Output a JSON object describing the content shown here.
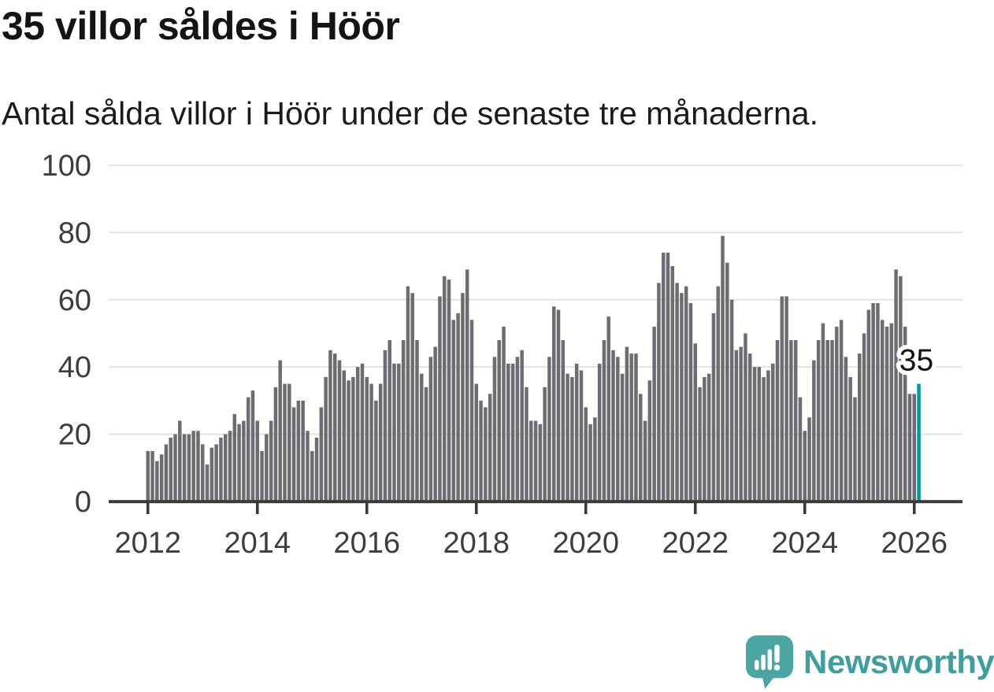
{
  "header": {
    "title": "35 villor såldes i Höör",
    "subtitle": "Antal sålda villor i Höör under de senaste tre månaderna."
  },
  "chart_data": {
    "type": "bar",
    "title": "35 villor såldes i Höör",
    "subtitle": "Antal sålda villor i Höör under de senaste tre månaderna.",
    "x_start_month": "2012-01",
    "x_end_month": "2026-02",
    "frequency": "monthly",
    "values": [
      15,
      15,
      12,
      14,
      17,
      19,
      20,
      24,
      20,
      20,
      21,
      21,
      17,
      11,
      16,
      17,
      19,
      20,
      21,
      26,
      23,
      24,
      31,
      33,
      24,
      15,
      20,
      24,
      34,
      42,
      35,
      35,
      28,
      30,
      30,
      21,
      15,
      19,
      28,
      37,
      45,
      44,
      42,
      39,
      36,
      37,
      40,
      41,
      37,
      35,
      30,
      35,
      45,
      48,
      41,
      41,
      48,
      64,
      62,
      48,
      38,
      34,
      43,
      46,
      61,
      67,
      66,
      54,
      56,
      62,
      69,
      54,
      35,
      30,
      28,
      32,
      43,
      48,
      52,
      41,
      41,
      43,
      45,
      34,
      24,
      24,
      23,
      34,
      43,
      58,
      57,
      48,
      38,
      37,
      41,
      39,
      28,
      23,
      25,
      41,
      48,
      55,
      45,
      43,
      38,
      46,
      44,
      44,
      32,
      24,
      36,
      52,
      65,
      74,
      74,
      70,
      65,
      62,
      64,
      59,
      47,
      34,
      37,
      38,
      56,
      64,
      79,
      71,
      60,
      45,
      46,
      50,
      44,
      40,
      40,
      37,
      39,
      41,
      48,
      61,
      61,
      48,
      48,
      31,
      21,
      25,
      42,
      48,
      53,
      48,
      48,
      52,
      54,
      43,
      37,
      31,
      44,
      50,
      57,
      59,
      59,
      54,
      52,
      53,
      69,
      67,
      52,
      32,
      32,
      35
    ],
    "highlight_index": 169,
    "highlight_value": 35,
    "annotation_label": "35",
    "x_tick_years": [
      2012,
      2014,
      2016,
      2018,
      2020,
      2022,
      2024,
      2026
    ],
    "y_ticks": [
      0,
      20,
      40,
      60,
      80,
      100
    ],
    "ylim": [
      0,
      100
    ],
    "grid": true,
    "legend": false,
    "colors": {
      "bar": "#6c6c72",
      "highlight": "#009a9c",
      "grid": "#e2e2e2",
      "axis": "#3a3a3a",
      "tick_label": "#3d3d3d",
      "annotation": "#111111",
      "annotation_halo": "#ffffff"
    }
  },
  "branding": {
    "logo_text": "Newsworthy",
    "text_color": "#3f9f9e",
    "mark_color": "#4aa5a3",
    "mark_glyph_color": "#ffffff",
    "mark_icon": "speech-bubble-bar-chart-exclamation"
  }
}
